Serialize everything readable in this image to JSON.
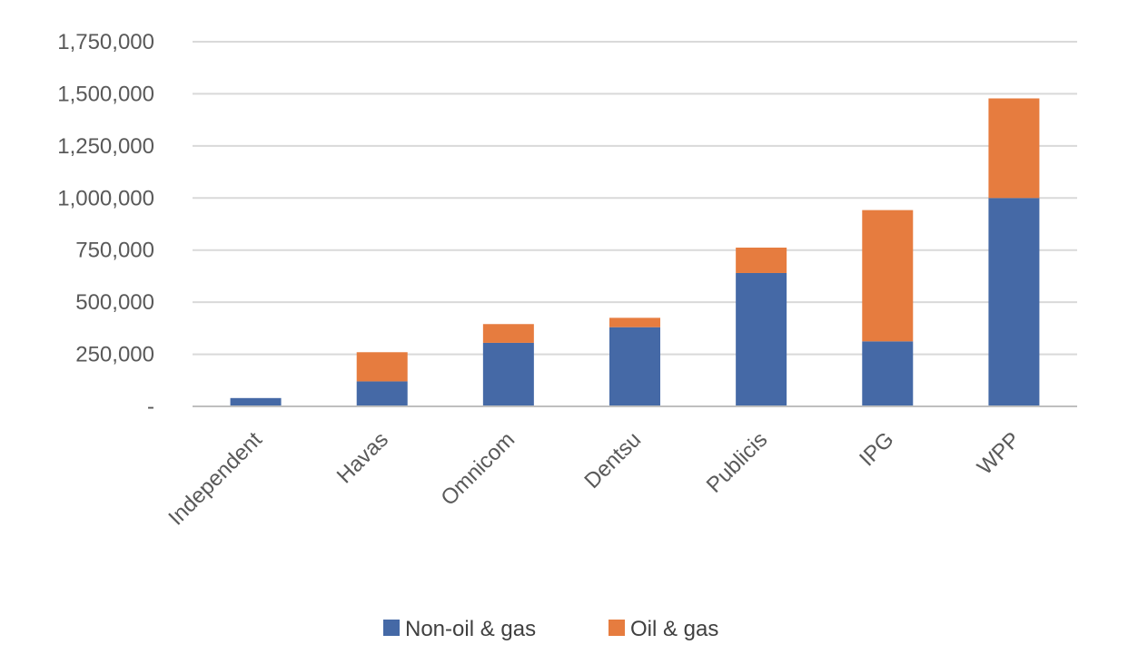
{
  "chart_data": {
    "type": "bar",
    "stacked": true,
    "categories": [
      "Independent",
      "Havas",
      "Omnicom",
      "Dentsu",
      "Publicis",
      "IPG",
      "WPP"
    ],
    "series": [
      {
        "name": "Non-oil & gas",
        "color": "#4569a6",
        "values": [
          40000,
          120000,
          305000,
          380000,
          640000,
          312000,
          1000000
        ]
      },
      {
        "name": "Oil & gas",
        "color": "#e67c3f",
        "values": [
          0,
          140000,
          90000,
          45000,
          122000,
          630000,
          478000
        ]
      }
    ],
    "ylim": [
      0,
      1750000
    ],
    "yticks": [
      0,
      250000,
      500000,
      750000,
      1000000,
      1250000,
      1500000,
      1750000
    ],
    "ytick_labels": [
      "-",
      "250,000",
      "500,000",
      "750,000",
      "1,000,000",
      "1,250,000",
      "1,500,000",
      "1,750,000"
    ],
    "grid": true,
    "legend_position": "bottom",
    "title": "",
    "xlabel": "",
    "ylabel": ""
  }
}
